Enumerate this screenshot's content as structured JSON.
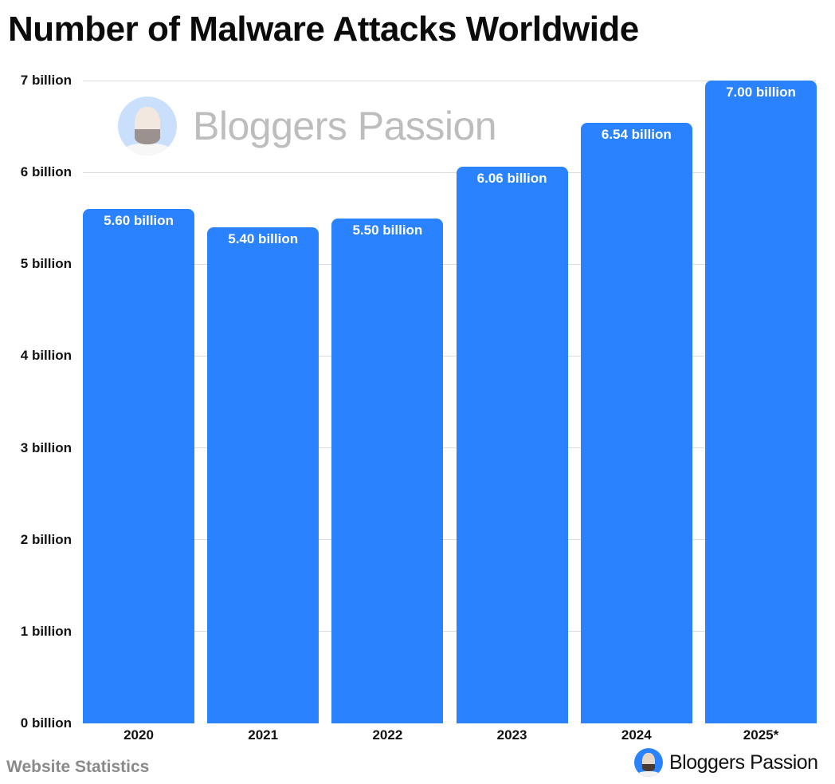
{
  "title": "Number of Malware Attacks Worldwide",
  "watermark": {
    "text": "Bloggers Passion",
    "icon": "avatar-icon"
  },
  "footer": {
    "left": "Website Statistics",
    "brand": "Bloggers Passion",
    "brand_icon": "avatar-icon"
  },
  "colors": {
    "bar": "#2a82ff",
    "grid": "#dcdcdc",
    "text": "#111111",
    "footer_text": "#8a8a8a"
  },
  "y_axis": {
    "ticks": [
      "0 billion",
      "1 billion",
      "2 billion",
      "3 billion",
      "4 billion",
      "5 billion",
      "6 billion",
      "7 billion"
    ]
  },
  "bars": [
    {
      "category": "2020",
      "value": 5.6,
      "label": "5.60 billion"
    },
    {
      "category": "2021",
      "value": 5.4,
      "label": "5.40 billion"
    },
    {
      "category": "2022",
      "value": 5.5,
      "label": "5.50 billion"
    },
    {
      "category": "2023",
      "value": 6.06,
      "label": "6.06 billion"
    },
    {
      "category": "2024",
      "value": 6.54,
      "label": "6.54 billion"
    },
    {
      "category": "2025*",
      "value": 7.0,
      "label": "7.00 billion"
    }
  ],
  "chart_data": {
    "type": "bar",
    "title": "Number of Malware Attacks Worldwide",
    "categories": [
      "2020",
      "2021",
      "2022",
      "2023",
      "2024",
      "2025*"
    ],
    "values": [
      5.6,
      5.4,
      5.5,
      6.06,
      6.54,
      7.0
    ],
    "data_labels": [
      "5.60 billion",
      "5.40 billion",
      "5.50 billion",
      "6.06 billion",
      "6.54 billion",
      "7.00 billion"
    ],
    "unit": "billion",
    "xlabel": "",
    "ylabel": "",
    "ylim": [
      0,
      7
    ],
    "yticks": [
      "0 billion",
      "1 billion",
      "2 billion",
      "3 billion",
      "4 billion",
      "5 billion",
      "6 billion",
      "7 billion"
    ],
    "grid": true,
    "legend": null,
    "source": "Website Statistics",
    "branding": "Bloggers Passion"
  }
}
